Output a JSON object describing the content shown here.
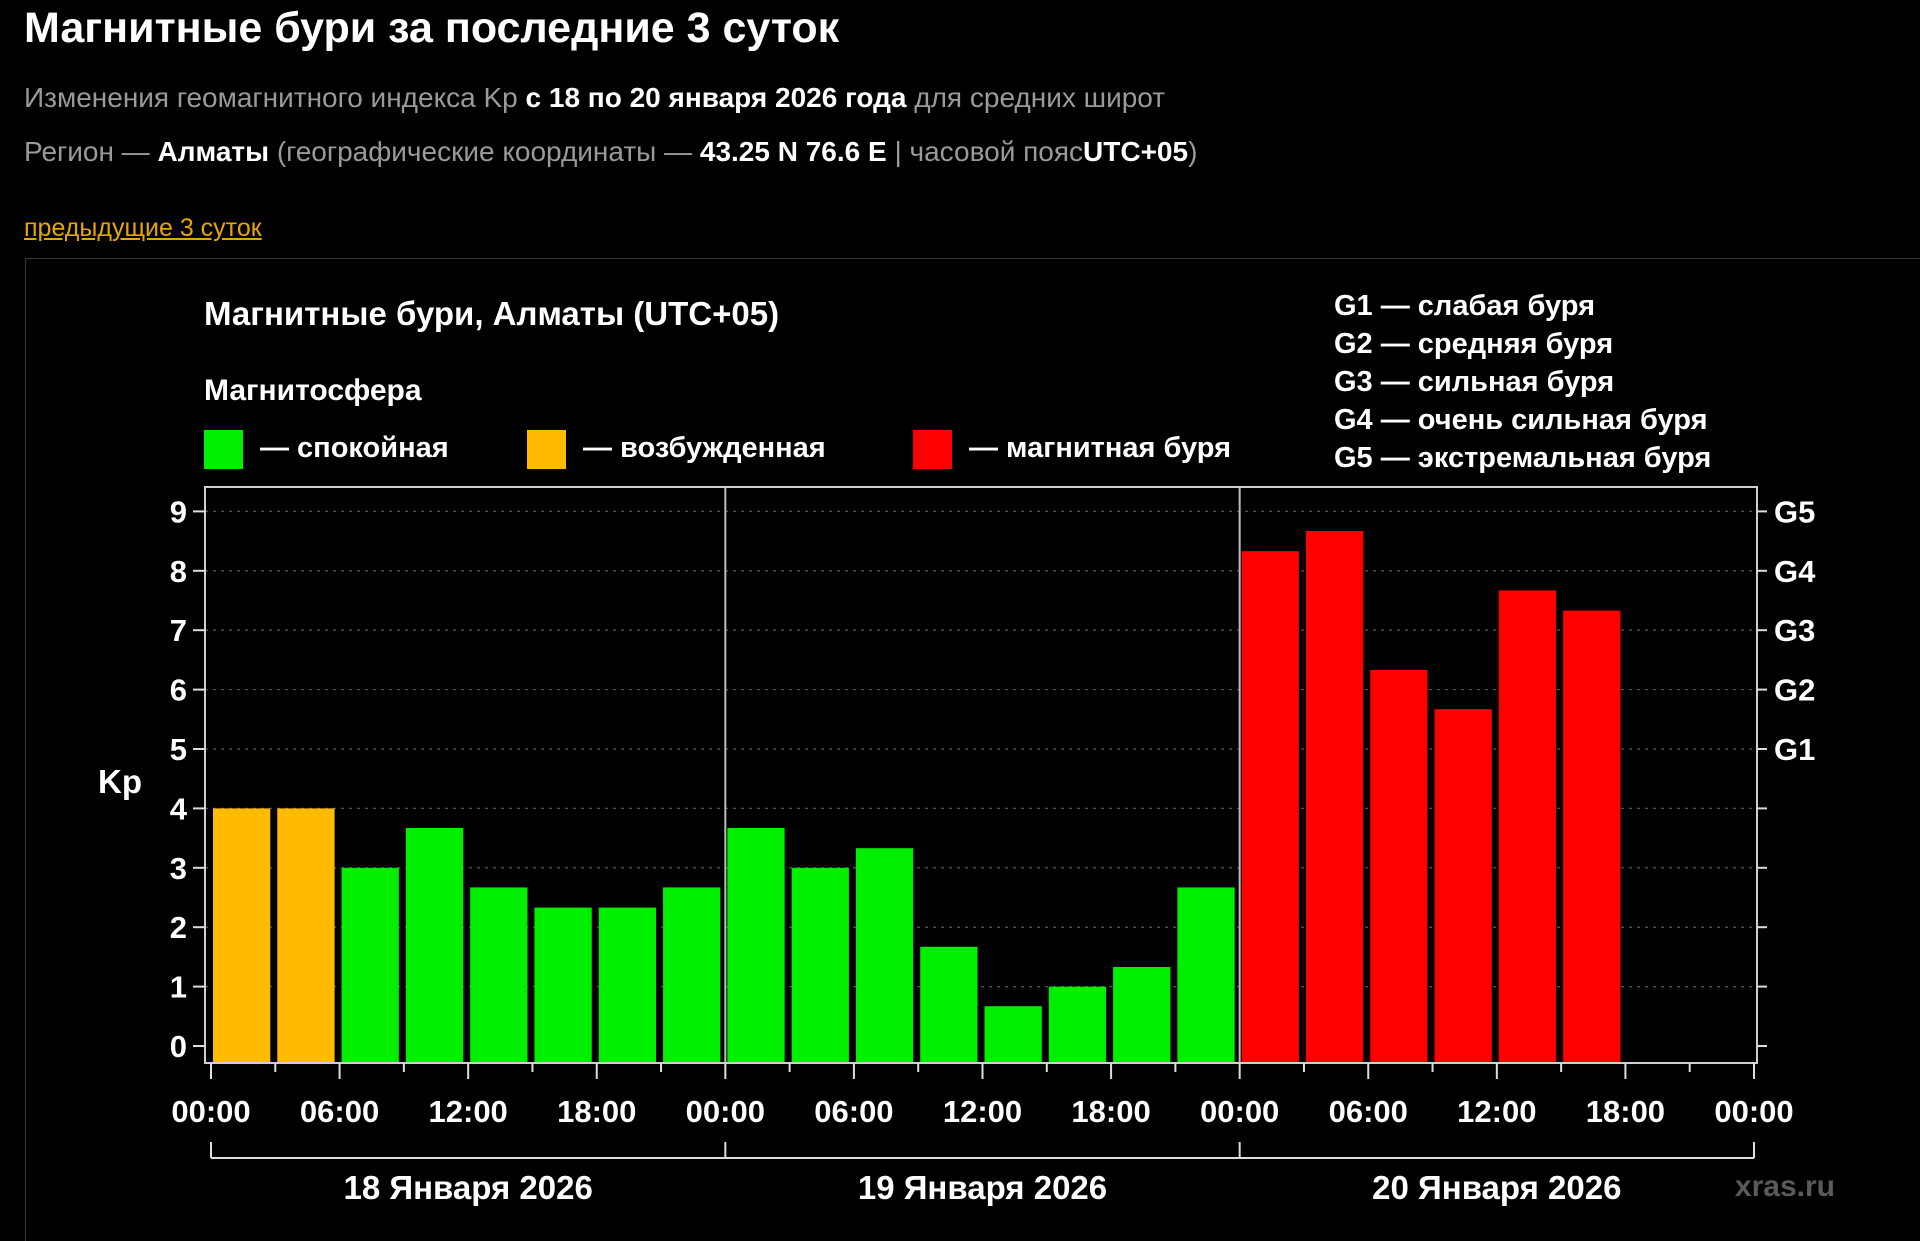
{
  "page": {
    "title": "Магнитные бури за последние 3 суток",
    "line1": {
      "prefix": "Изменения геомагнитного индекса Kp",
      "period": "с 18 по 20 января 2026 года",
      "suffix": "для средних широт"
    },
    "line2": {
      "prefix": "Регион —",
      "region": "Алматы",
      "coords_label": "(географические координаты —",
      "coords": "43.25 N 76.6 E",
      "tz_label": "| часовой пояс",
      "tz": "UTC+05",
      "close": ")"
    },
    "prev_link": "предыдущие 3 суток"
  },
  "chart_data": {
    "type": "bar",
    "title": "Магнитные бури, Алматы (UTC+05)",
    "subtitle": "Магнитосфера",
    "legend": [
      {
        "label": "— спокойная",
        "color": "#00ee00",
        "level": "calm"
      },
      {
        "label": "— возбужденная",
        "color": "#ffbb00",
        "level": "excited"
      },
      {
        "label": "— магнитная буря",
        "color": "#ff0000",
        "level": "storm"
      }
    ],
    "storm_scale": [
      "G1 — слабая буря",
      "G2 — средняя буря",
      "G3 — сильная буря",
      "G4 — очень сильная буря",
      "G5 — экстремальная буря"
    ],
    "ylabel": "Kp",
    "ylim": [
      0,
      9
    ],
    "yticks": [
      0,
      1,
      2,
      3,
      4,
      5,
      6,
      7,
      8,
      9
    ],
    "right_ticks": [
      {
        "kp": 5,
        "label": "G1"
      },
      {
        "kp": 6,
        "label": "G2"
      },
      {
        "kp": 7,
        "label": "G3"
      },
      {
        "kp": 8,
        "label": "G4"
      },
      {
        "kp": 9,
        "label": "G5"
      }
    ],
    "x_hours_total": 72,
    "interval_hours": 3,
    "x_tick_labels": [
      "00:00",
      "06:00",
      "12:00",
      "18:00",
      "00:00",
      "06:00",
      "12:00",
      "18:00",
      "00:00",
      "06:00",
      "12:00",
      "18:00",
      "00:00"
    ],
    "days": [
      "18 Января 2026",
      "19 Января 2026",
      "20 Января 2026"
    ],
    "colors": {
      "calm": "#00ee00",
      "excited": "#ffbb00",
      "storm": "#ff0000"
    },
    "values": [
      4.0,
      4.0,
      3.0,
      3.67,
      2.67,
      2.33,
      2.33,
      2.67,
      3.67,
      3.0,
      3.33,
      1.67,
      0.67,
      1.0,
      1.33,
      2.67,
      8.33,
      8.67,
      6.33,
      5.67,
      7.67,
      7.33
    ],
    "levels": [
      "excited",
      "excited",
      "calm",
      "calm",
      "calm",
      "calm",
      "calm",
      "calm",
      "calm",
      "calm",
      "calm",
      "calm",
      "calm",
      "calm",
      "calm",
      "calm",
      "storm",
      "storm",
      "storm",
      "storm",
      "storm",
      "storm"
    ],
    "grid": true,
    "watermark": "xras.ru"
  }
}
